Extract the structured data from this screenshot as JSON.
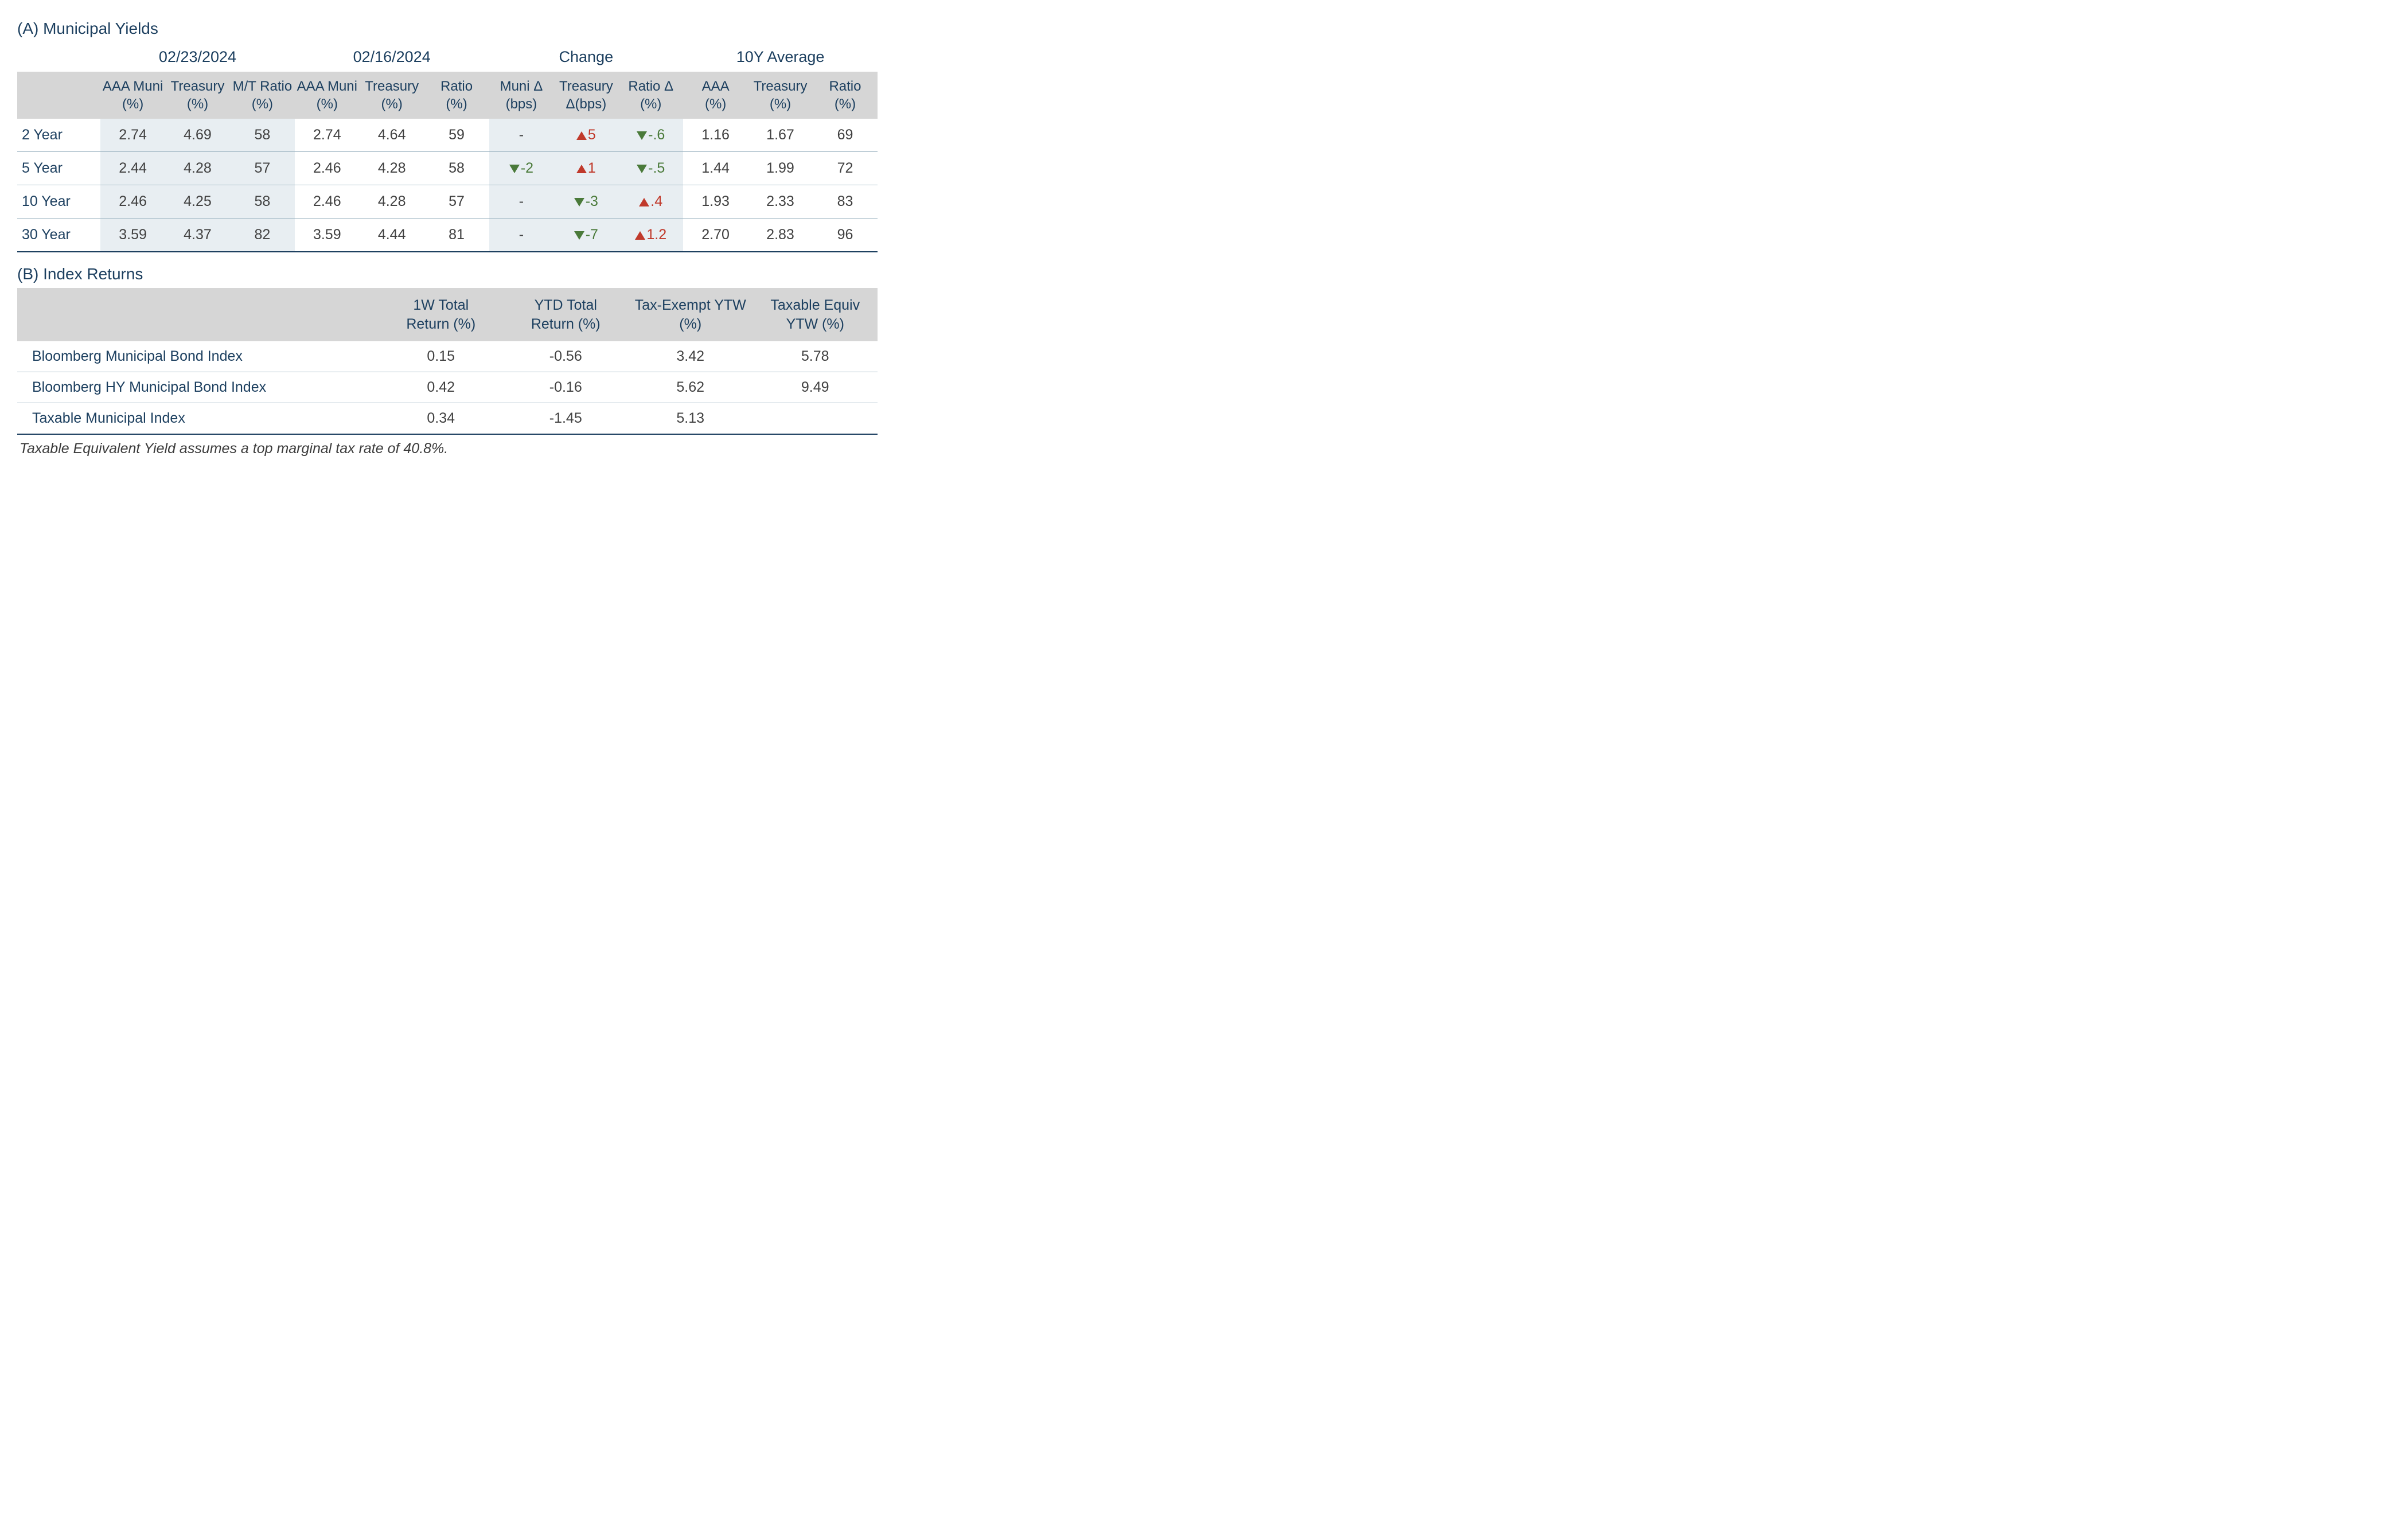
{
  "colors": {
    "navy": "#1c3f5f",
    "header_bg": "#d6d6d6",
    "tint_bg": "#e8eef2",
    "row_border": "#9bb3c0",
    "text": "#414141",
    "up": "#c0392b",
    "down": "#4a7a3a",
    "background": "#ffffff"
  },
  "sectionA": {
    "title": "(A) Municipal Yields",
    "super_headers": [
      "02/23/2024",
      "02/16/2024",
      "Change",
      "10Y Average"
    ],
    "sub_headers": {
      "rowlabel": "",
      "g1": [
        "AAA Muni (%)",
        "Treasury (%)",
        "M/T Ratio (%)"
      ],
      "g2": [
        "AAA Muni (%)",
        "Treasury (%)",
        "Ratio (%)"
      ],
      "g3": [
        "Muni Δ (bps)",
        "Treasury Δ(bps)",
        "Ratio Δ (%)"
      ],
      "g4": [
        "AAA (%)",
        "Treasury (%)",
        "Ratio (%)"
      ]
    },
    "rows": [
      {
        "label": "2 Year",
        "g1": [
          "2.74",
          "4.69",
          "58"
        ],
        "g2": [
          "2.74",
          "4.64",
          "59"
        ],
        "g3": [
          {
            "dir": "none",
            "val": "-"
          },
          {
            "dir": "up",
            "val": "5"
          },
          {
            "dir": "down",
            "val": "-.6"
          }
        ],
        "g4": [
          "1.16",
          "1.67",
          "69"
        ]
      },
      {
        "label": "5 Year",
        "g1": [
          "2.44",
          "4.28",
          "57"
        ],
        "g2": [
          "2.46",
          "4.28",
          "58"
        ],
        "g3": [
          {
            "dir": "down",
            "val": "-2"
          },
          {
            "dir": "up",
            "val": "1"
          },
          {
            "dir": "down",
            "val": "-.5"
          }
        ],
        "g4": [
          "1.44",
          "1.99",
          "72"
        ]
      },
      {
        "label": "10 Year",
        "g1": [
          "2.46",
          "4.25",
          "58"
        ],
        "g2": [
          "2.46",
          "4.28",
          "57"
        ],
        "g3": [
          {
            "dir": "none",
            "val": "-"
          },
          {
            "dir": "down",
            "val": "-3"
          },
          {
            "dir": "up",
            "val": ".4"
          }
        ],
        "g4": [
          "1.93",
          "2.33",
          "83"
        ]
      },
      {
        "label": "30 Year",
        "g1": [
          "3.59",
          "4.37",
          "82"
        ],
        "g2": [
          "3.59",
          "4.44",
          "81"
        ],
        "g3": [
          {
            "dir": "none",
            "val": "-"
          },
          {
            "dir": "down",
            "val": "-7"
          },
          {
            "dir": "up",
            "val": "1.2"
          }
        ],
        "g4": [
          "2.70",
          "2.83",
          "96"
        ]
      }
    ]
  },
  "sectionB": {
    "title": "(B) Index Returns",
    "headers": [
      "",
      "1W Total Return (%)",
      "YTD Total Return (%)",
      "Tax-Exempt YTW (%)",
      "Taxable Equiv YTW (%)"
    ],
    "rows": [
      {
        "name": "Bloomberg Municipal Bond Index",
        "vals": [
          "0.15",
          "-0.56",
          "3.42",
          "5.78"
        ]
      },
      {
        "name": "Bloomberg HY Municipal Bond Index",
        "vals": [
          "0.42",
          "-0.16",
          "5.62",
          "9.49"
        ]
      },
      {
        "name": "Taxable Municipal Index",
        "vals": [
          "0.34",
          "-1.45",
          "5.13",
          ""
        ]
      }
    ],
    "footnote": "Taxable Equivalent Yield assumes a top marginal tax rate of 40.8%."
  }
}
